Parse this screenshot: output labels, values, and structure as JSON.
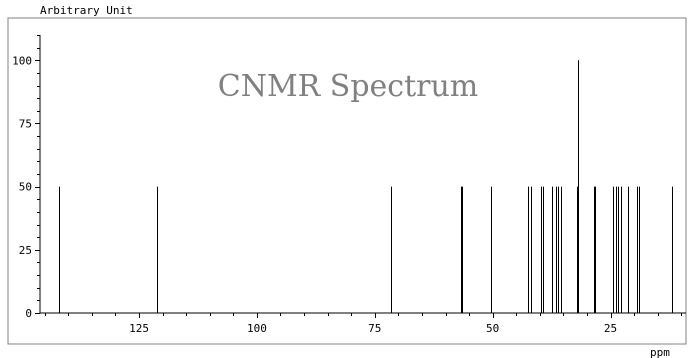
{
  "chart_data": {
    "type": "bar",
    "title": "CNMR Spectrum",
    "ylabel": "Arbitrary Unit",
    "xlabel": "ppm",
    "x_reversed": true,
    "xlim": [
      146,
      9
    ],
    "ylim": [
      0,
      110
    ],
    "x_ticks": [
      125,
      100,
      75,
      50,
      25
    ],
    "y_ticks": [
      0,
      25,
      50,
      75,
      100
    ],
    "grid": false,
    "colors": {
      "frame": "#808080",
      "background": "#ffffff",
      "line": "#000000",
      "title": "#808080"
    },
    "peaks": [
      {
        "x": 142.0,
        "y": 50
      },
      {
        "x": 121.2,
        "y": 50
      },
      {
        "x": 71.5,
        "y": 50
      },
      {
        "x": 56.8,
        "y": 50
      },
      {
        "x": 56.5,
        "y": 50
      },
      {
        "x": 50.3,
        "y": 50
      },
      {
        "x": 42.6,
        "y": 50
      },
      {
        "x": 41.9,
        "y": 50
      },
      {
        "x": 39.8,
        "y": 50
      },
      {
        "x": 39.4,
        "y": 50
      },
      {
        "x": 37.4,
        "y": 50
      },
      {
        "x": 36.6,
        "y": 50
      },
      {
        "x": 36.2,
        "y": 50
      },
      {
        "x": 35.6,
        "y": 50
      },
      {
        "x": 32.1,
        "y": 50
      },
      {
        "x": 31.8,
        "y": 100
      },
      {
        "x": 28.5,
        "y": 50
      },
      {
        "x": 28.2,
        "y": 50
      },
      {
        "x": 24.5,
        "y": 50
      },
      {
        "x": 23.9,
        "y": 50
      },
      {
        "x": 23.5,
        "y": 50
      },
      {
        "x": 22.8,
        "y": 50
      },
      {
        "x": 21.2,
        "y": 50
      },
      {
        "x": 19.4,
        "y": 50
      },
      {
        "x": 18.9,
        "y": 50
      },
      {
        "x": 12.0,
        "y": 50
      }
    ]
  }
}
